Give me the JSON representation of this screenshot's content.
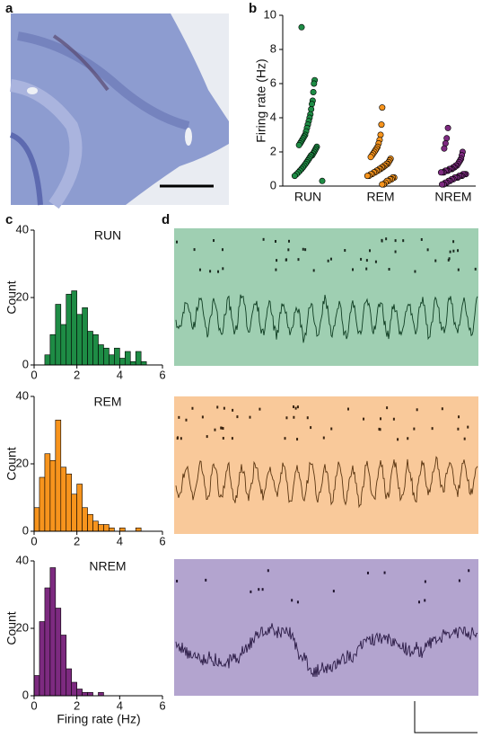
{
  "panel_labels": [
    "a",
    "b",
    "c",
    "d"
  ],
  "chart_data": [
    {
      "type": "strip",
      "ylabel": "Firing rate (Hz)",
      "categories": [
        "RUN",
        "REM",
        "NREM"
      ],
      "colors": [
        "#1e8c45",
        "#f7941d",
        "#7d2a80"
      ],
      "ylim": [
        0,
        10
      ],
      "yticks": [
        0,
        2,
        4,
        6,
        8,
        10
      ],
      "values": [
        [
          9.3,
          6.2,
          6.0,
          5.5,
          5.0,
          4.8,
          4.5,
          4.2,
          4.0,
          3.8,
          3.6,
          3.4,
          3.2,
          3.0,
          2.9,
          2.8,
          2.7,
          2.6,
          2.5,
          2.4,
          2.3,
          2.2,
          2.1,
          2.0,
          1.9,
          1.8,
          1.8,
          1.7,
          1.6,
          1.5,
          1.4,
          1.3,
          1.2,
          1.1,
          1.0,
          0.9,
          0.8,
          0.7,
          0.6,
          0.3
        ],
        [
          4.6,
          3.6,
          3.0,
          2.7,
          2.5,
          2.3,
          2.2,
          2.1,
          2.0,
          1.9,
          1.8,
          1.7,
          1.6,
          1.5,
          1.4,
          1.3,
          1.3,
          1.2,
          1.2,
          1.1,
          1.1,
          1.0,
          1.0,
          0.9,
          0.9,
          0.8,
          0.8,
          0.7,
          0.7,
          0.6,
          0.6,
          0.5,
          0.5,
          0.4,
          0.4,
          0.3,
          0.3,
          0.2,
          0.1,
          0.1
        ],
        [
          3.4,
          2.8,
          2.5,
          2.2,
          2.0,
          1.8,
          1.6,
          1.5,
          1.4,
          1.3,
          1.2,
          1.2,
          1.1,
          1.1,
          1.0,
          1.0,
          1.0,
          0.9,
          0.9,
          0.9,
          0.8,
          0.8,
          0.8,
          0.7,
          0.7,
          0.7,
          0.6,
          0.6,
          0.6,
          0.5,
          0.5,
          0.5,
          0.4,
          0.4,
          0.3,
          0.3,
          0.2,
          0.2,
          0.1,
          0.1
        ]
      ]
    },
    {
      "type": "histogram",
      "title": "RUN",
      "ylabel": "Count",
      "color": "#1e8c45",
      "bins": [
        0,
        0.25,
        0.5,
        0.75,
        1,
        1.25,
        1.5,
        1.75,
        2,
        2.25,
        2.5,
        2.75,
        3,
        3.25,
        3.5,
        3.75,
        4,
        4.25,
        4.5,
        4.75,
        5,
        5.25,
        5.5,
        5.75,
        6
      ],
      "counts": [
        0,
        0,
        3,
        9,
        18,
        12,
        21,
        22,
        15,
        17,
        10,
        9,
        6,
        5,
        3,
        5,
        2,
        4,
        1,
        4,
        1,
        0,
        0,
        0
      ],
      "xlim": [
        0,
        6
      ],
      "xticks": [
        0,
        2,
        4,
        6
      ],
      "ylim": [
        0,
        40
      ],
      "yticks": [
        0,
        20,
        40
      ]
    },
    {
      "type": "histogram",
      "title": "REM",
      "ylabel": "Count",
      "color": "#f7941d",
      "bins": [
        0,
        0.25,
        0.5,
        0.75,
        1,
        1.25,
        1.5,
        1.75,
        2,
        2.25,
        2.5,
        2.75,
        3,
        3.25,
        3.5,
        3.75,
        4,
        4.25,
        4.5,
        4.75,
        5,
        5.25,
        5.5,
        5.75,
        6
      ],
      "counts": [
        7,
        16,
        23,
        21,
        33,
        19,
        17,
        11,
        14,
        7,
        5,
        3,
        2,
        2,
        1,
        0,
        1,
        0,
        0,
        1,
        0,
        0,
        0,
        0
      ],
      "xlim": [
        0,
        6
      ],
      "xticks": [
        0,
        2,
        4,
        6
      ],
      "ylim": [
        0,
        40
      ],
      "yticks": [
        0,
        20,
        40
      ]
    },
    {
      "type": "histogram",
      "title": "NREM",
      "ylabel": "Count",
      "xlabel": "Firing rate (Hz)",
      "color": "#7d2a80",
      "bins": [
        0,
        0.25,
        0.5,
        0.75,
        1,
        1.25,
        1.5,
        1.75,
        2,
        2.25,
        2.5,
        2.75,
        3,
        3.25,
        3.5,
        3.75,
        4,
        4.25,
        4.5,
        4.75,
        5,
        5.25,
        5.5,
        5.75,
        6
      ],
      "counts": [
        6,
        22,
        32,
        38,
        26,
        18,
        8,
        4,
        2,
        1,
        1,
        0,
        1,
        0,
        0,
        0,
        0,
        0,
        0,
        0,
        0,
        0,
        0,
        0
      ],
      "xlim": [
        0,
        6
      ],
      "xticks": [
        0,
        2,
        4,
        6
      ],
      "ylim": [
        0,
        40
      ],
      "yticks": [
        0,
        20,
        40
      ]
    }
  ]
}
